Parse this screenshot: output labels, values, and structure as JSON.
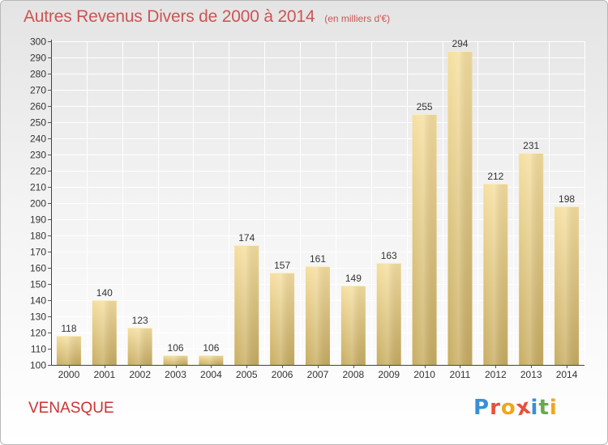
{
  "title": "Autres Revenus Divers de 2000 à 2014",
  "subtitle": "(en milliers d'€)",
  "commune": "VENASQUE",
  "logo": {
    "text": "Proxiti",
    "letter_colors": [
      "#3a8fd6",
      "#e8503a",
      "#f2a51a",
      "#e8503a",
      "#3a8fd6",
      "#6aa84f",
      "#f2a51a"
    ]
  },
  "colors": {
    "bar_light": "#f6dfa0",
    "bar_dark": "#c8ad62",
    "title": "#cc5555",
    "grid": "#ffffff"
  },
  "chart_data": {
    "type": "bar",
    "categories": [
      "2000",
      "2001",
      "2002",
      "2003",
      "2004",
      "2005",
      "2006",
      "2007",
      "2008",
      "2009",
      "2010",
      "2011",
      "2012",
      "2013",
      "2014"
    ],
    "values": [
      118,
      140,
      123,
      106,
      106,
      174,
      157,
      161,
      149,
      163,
      255,
      294,
      212,
      231,
      198
    ],
    "ylim": [
      100,
      300
    ],
    "yticks": [
      100,
      110,
      120,
      130,
      140,
      150,
      160,
      170,
      180,
      190,
      200,
      210,
      220,
      230,
      240,
      250,
      260,
      270,
      280,
      290,
      300
    ],
    "grid": true,
    "data_labels": true
  }
}
